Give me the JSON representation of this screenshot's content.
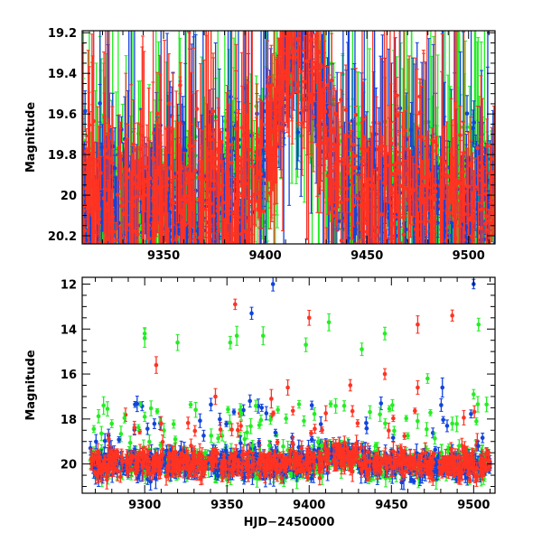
{
  "chart_data": [
    {
      "type": "scatter",
      "panel": "top",
      "xlabel": "",
      "ylabel": "Magnitude",
      "xlim": [
        9310,
        9513
      ],
      "ylim": [
        20.24,
        19.19
      ],
      "y_inverted": true,
      "x_ticks": [
        9350,
        9400,
        9450,
        9500
      ],
      "y_ticks": [
        19.2,
        19.4,
        19.6,
        19.8,
        20,
        20.2
      ],
      "y_tick_labels": [
        "19.2",
        "19.4",
        "19.6",
        "19.8",
        "20",
        "20.2"
      ],
      "grid": false,
      "legend": "none",
      "error_bars": true,
      "series": [
        {
          "color": "#22ee22",
          "description_level": "green"
        },
        {
          "color": "#1144dd",
          "description_level": "blue"
        },
        {
          "color": "#ff3322",
          "description_level": "red"
        }
      ],
      "base_magnitude": 20.0,
      "scatter_sigma": 0.16,
      "brightening_peak_x": 9416,
      "brightening_peak_mag": 19.25
    },
    {
      "type": "scatter",
      "panel": "bottom",
      "xlabel": "HJD−2450000",
      "ylabel": "Magnitude",
      "xlim": [
        9262,
        9513
      ],
      "ylim": [
        21.3,
        11.7
      ],
      "y_inverted": true,
      "x_ticks": [
        9300,
        9350,
        9400,
        9450,
        9500
      ],
      "y_ticks": [
        12,
        14,
        16,
        18,
        20
      ],
      "y_tick_labels": [
        "12",
        "14",
        "16",
        "18",
        "20"
      ],
      "grid": false,
      "legend": "none",
      "error_bars": true,
      "series": [
        {
          "color": "#22ee22"
        },
        {
          "color": "#1144dd"
        },
        {
          "color": "#ff3322"
        }
      ],
      "base_magnitude": 20.0,
      "outliers": [
        {
          "x": 9378,
          "y": 12.0,
          "series": 1
        },
        {
          "x": 9500,
          "y": 12.0,
          "series": 1
        },
        {
          "x": 9355,
          "y": 12.9,
          "series": 2
        },
        {
          "x": 9365,
          "y": 13.3,
          "series": 1
        },
        {
          "x": 9400,
          "y": 13.5,
          "series": 2
        },
        {
          "x": 9412,
          "y": 13.7,
          "series": 0
        },
        {
          "x": 9487,
          "y": 13.4,
          "series": 2
        },
        {
          "x": 9503,
          "y": 13.8,
          "series": 0
        },
        {
          "x": 9300,
          "y": 14.2,
          "series": 0
        },
        {
          "x": 9300,
          "y": 14.4,
          "series": 0
        },
        {
          "x": 9320,
          "y": 14.6,
          "series": 0
        },
        {
          "x": 9352,
          "y": 14.6,
          "series": 0
        },
        {
          "x": 9356,
          "y": 14.3,
          "series": 0
        },
        {
          "x": 9372,
          "y": 14.3,
          "series": 0
        },
        {
          "x": 9398,
          "y": 14.7,
          "series": 0
        },
        {
          "x": 9432,
          "y": 14.9,
          "series": 0
        },
        {
          "x": 9446,
          "y": 14.2,
          "series": 0
        },
        {
          "x": 9466,
          "y": 13.8,
          "series": 2
        },
        {
          "x": 9307,
          "y": 15.6,
          "series": 2
        },
        {
          "x": 9343,
          "y": 17.0,
          "series": 2
        },
        {
          "x": 9364,
          "y": 17.2,
          "series": 1
        },
        {
          "x": 9377,
          "y": 17.1,
          "series": 2
        },
        {
          "x": 9387,
          "y": 16.6,
          "series": 2
        },
        {
          "x": 9425,
          "y": 16.5,
          "series": 2
        },
        {
          "x": 9446,
          "y": 16.0,
          "series": 2
        },
        {
          "x": 9466,
          "y": 16.6,
          "series": 2
        },
        {
          "x": 9472,
          "y": 16.2,
          "series": 0
        },
        {
          "x": 9481,
          "y": 16.6,
          "series": 1
        },
        {
          "x": 9500,
          "y": 16.9,
          "series": 0
        },
        {
          "x": 9275,
          "y": 17.4,
          "series": 0
        },
        {
          "x": 9300,
          "y": 17.9,
          "series": 0
        },
        {
          "x": 9310,
          "y": 18.2,
          "series": 2
        }
      ],
      "mid_scatter_count": 140
    }
  ]
}
